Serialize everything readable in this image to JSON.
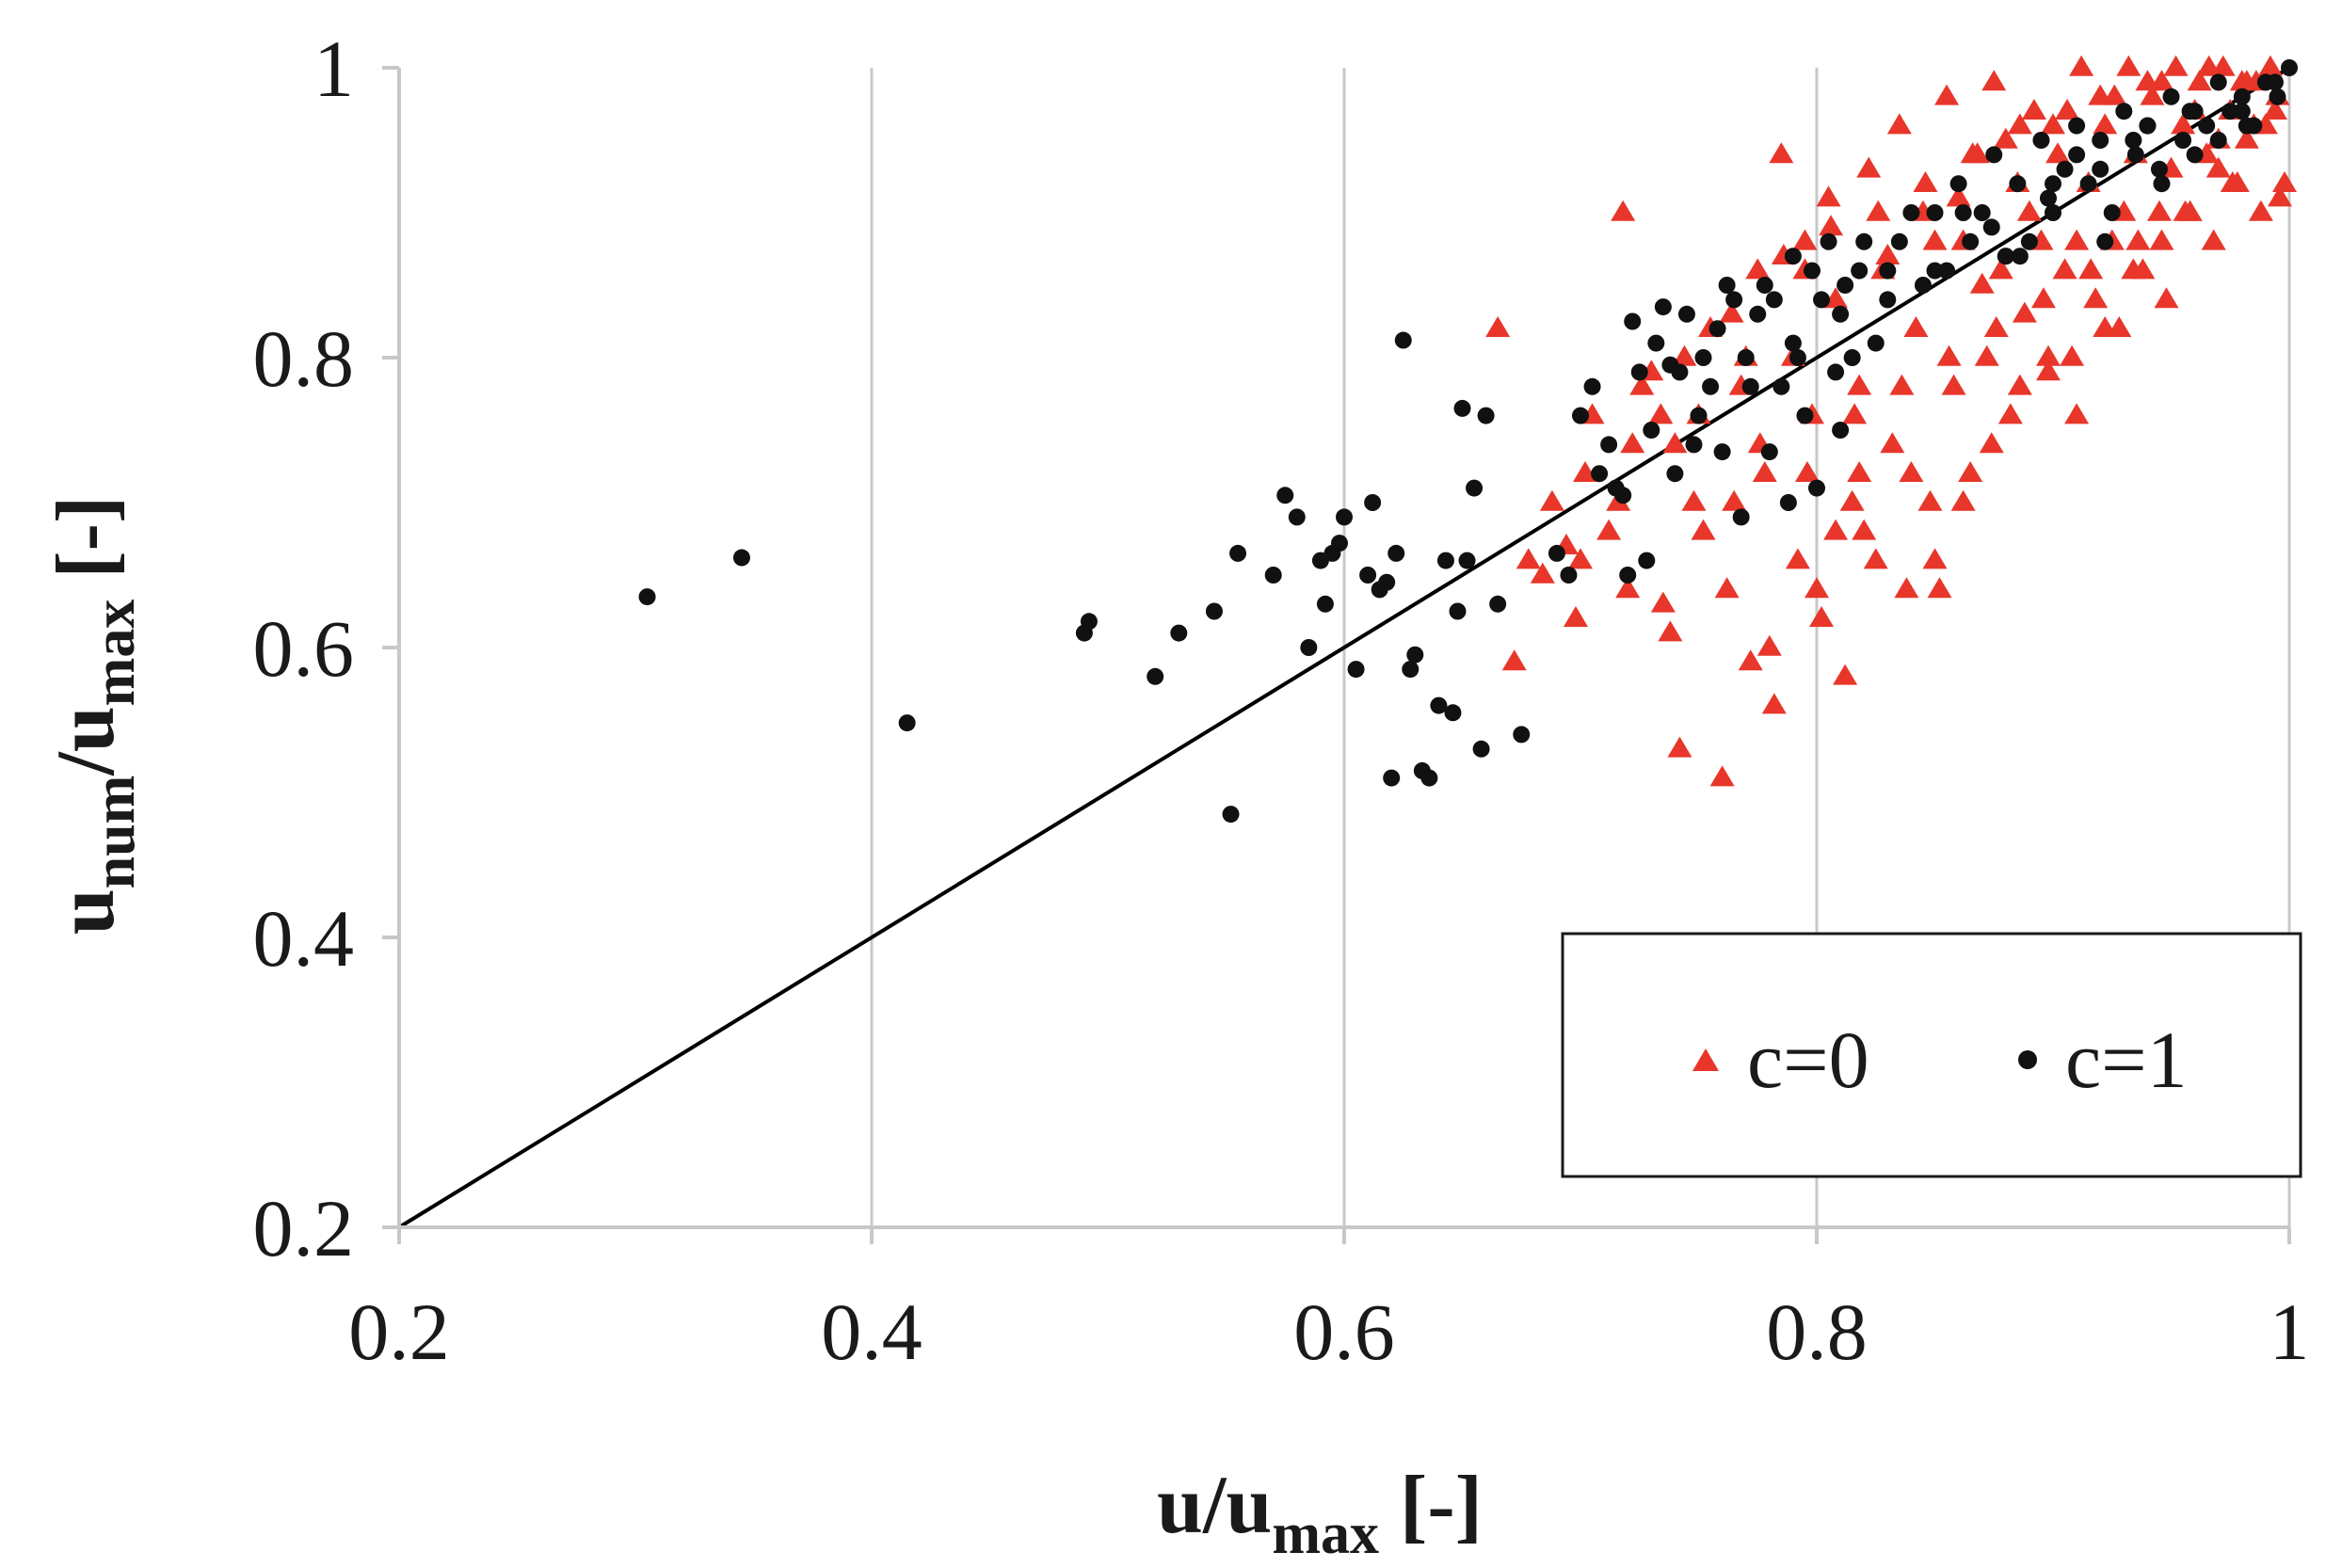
{
  "chart_data": {
    "type": "scatter",
    "xlim": [
      0.2,
      1.0
    ],
    "ylim": [
      0.2,
      1.0
    ],
    "x_ticks": [
      "0.2",
      "0.4",
      "0.6",
      "0.8",
      "1"
    ],
    "y_ticks": [
      "0.2",
      "0.4",
      "0.6",
      "0.8",
      "1"
    ],
    "xlabel": {
      "main": "u/u",
      "sub": "max",
      "suffix": " [-]"
    },
    "ylabel": {
      "main": "u",
      "sub1": "num",
      "mid": "/u",
      "sub2": "max",
      "suffix": " [-]"
    },
    "grid": "vertical",
    "legend_position": "lower-right",
    "reference_line": {
      "x": [
        0.2,
        1.0
      ],
      "y": [
        0.2,
        1.0
      ],
      "color": "#000000"
    },
    "series": [
      {
        "name": "c=0",
        "marker": "triangle",
        "color": "#e8362a",
        "x": [
          0.665,
          0.678,
          0.688,
          0.698,
          0.705,
          0.712,
          0.718,
          0.722,
          0.73,
          0.738,
          0.742,
          0.748,
          0.755,
          0.76,
          0.762,
          0.768,
          0.772,
          0.775,
          0.778,
          0.782,
          0.785,
          0.79,
          0.792,
          0.795,
          0.798,
          0.802,
          0.805,
          0.808,
          0.812,
          0.815,
          0.818,
          0.822,
          0.825,
          0.828,
          0.832,
          0.835,
          0.838,
          0.842,
          0.845,
          0.848,
          0.852,
          0.855,
          0.858,
          0.862,
          0.865,
          0.868,
          0.872,
          0.875,
          0.878,
          0.882,
          0.885,
          0.888,
          0.892,
          0.895,
          0.898,
          0.902,
          0.905,
          0.908,
          0.912,
          0.915,
          0.918,
          0.922,
          0.925,
          0.928,
          0.932,
          0.935,
          0.938,
          0.942,
          0.945,
          0.948,
          0.952,
          0.955,
          0.958,
          0.962,
          0.965,
          0.968,
          0.972,
          0.975,
          0.978,
          0.982,
          0.985,
          0.988,
          0.992,
          0.995,
          0.998,
          0.672,
          0.684,
          0.694,
          0.702,
          0.716,
          0.726,
          0.734,
          0.744,
          0.752,
          0.764,
          0.776,
          0.786,
          0.796,
          0.806,
          0.816,
          0.826,
          0.836,
          0.846,
          0.856,
          0.866,
          0.876,
          0.886,
          0.896,
          0.906,
          0.916,
          0.926,
          0.936,
          0.946,
          0.956,
          0.966,
          0.976,
          0.986,
          0.996,
          0.74,
          0.765,
          0.77,
          0.795,
          0.808,
          0.818,
          0.83,
          0.85,
          0.86,
          0.87,
          0.88,
          0.89,
          0.9,
          0.91,
          0.92,
          0.93,
          0.94,
          0.95,
          0.96,
          0.97,
          0.98,
          0.99,
          0.85,
          0.862,
          0.874,
          0.886,
          0.898,
          0.91,
          0.922,
          0.934,
          0.946,
          0.958,
          0.97,
          0.982,
          0.994,
          0.78,
          0.8,
          0.82,
          0.84,
          0.7,
          0.72,
          0.735,
          0.75
        ],
        "y": [
          0.82,
          0.66,
          0.7,
          0.62,
          0.76,
          0.68,
          0.9,
          0.74,
          0.79,
          0.61,
          0.53,
          0.7,
          0.82,
          0.51,
          0.64,
          0.78,
          0.59,
          0.86,
          0.72,
          0.56,
          0.94,
          0.8,
          0.66,
          0.88,
          0.76,
          0.62,
          0.91,
          0.84,
          0.58,
          0.7,
          0.78,
          0.93,
          0.66,
          0.86,
          0.74,
          0.96,
          0.64,
          0.82,
          0.9,
          0.7,
          0.64,
          0.98,
          0.78,
          0.88,
          0.72,
          0.94,
          0.8,
          0.99,
          0.86,
          0.76,
          0.92,
          0.83,
          0.97,
          0.88,
          0.79,
          0.94,
          0.86,
          0.8,
          1.0,
          0.92,
          0.84,
          0.96,
          0.88,
          0.82,
          1.0,
          0.94,
          0.86,
          0.98,
          0.9,
          0.84,
          1.0,
          0.96,
          0.9,
          0.99,
          0.94,
          0.88,
          1.0,
          0.97,
          0.92,
          0.99,
          0.96,
          0.9,
          1.0,
          0.98,
          0.92,
          0.59,
          0.65,
          0.67,
          0.72,
          0.7,
          0.78,
          0.76,
          0.8,
          0.68,
          0.83,
          0.74,
          0.87,
          0.72,
          0.89,
          0.76,
          0.9,
          0.78,
          0.92,
          0.8,
          0.94,
          0.82,
          0.96,
          0.84,
          0.97,
          0.86,
          0.98,
          0.88,
          0.99,
          0.9,
          1.0,
          0.92,
          0.99,
          0.91,
          0.74,
          0.7,
          0.8,
          0.86,
          0.68,
          0.72,
          0.87,
          0.88,
          0.91,
          0.85,
          0.95,
          0.9,
          0.96,
          0.88,
          0.98,
          0.9,
          0.99,
          0.93,
          0.97,
          0.95,
          0.99,
          0.96,
          0.66,
          0.7,
          0.74,
          0.78,
          0.8,
          0.76,
          0.82,
          0.86,
          0.88,
          0.9,
          0.93,
          0.95,
          0.97,
          0.6,
          0.64,
          0.68,
          0.72,
          0.66,
          0.64,
          0.63,
          0.76
        ]
      },
      {
        "name": "c=1",
        "marker": "circle",
        "color": "#111111",
        "x": [
          0.305,
          0.345,
          0.415,
          0.49,
          0.492,
          0.52,
          0.53,
          0.545,
          0.552,
          0.555,
          0.57,
          0.575,
          0.58,
          0.585,
          0.59,
          0.592,
          0.595,
          0.598,
          0.6,
          0.605,
          0.61,
          0.612,
          0.615,
          0.618,
          0.62,
          0.622,
          0.625,
          0.628,
          0.63,
          0.633,
          0.636,
          0.64,
          0.643,
          0.646,
          0.648,
          0.65,
          0.652,
          0.655,
          0.658,
          0.66,
          0.665,
          0.675,
          0.69,
          0.695,
          0.7,
          0.705,
          0.708,
          0.712,
          0.715,
          0.718,
          0.72,
          0.722,
          0.725,
          0.728,
          0.73,
          0.732,
          0.735,
          0.738,
          0.74,
          0.742,
          0.745,
          0.748,
          0.75,
          0.752,
          0.755,
          0.758,
          0.76,
          0.762,
          0.765,
          0.768,
          0.77,
          0.772,
          0.775,
          0.778,
          0.78,
          0.782,
          0.785,
          0.788,
          0.79,
          0.792,
          0.795,
          0.798,
          0.8,
          0.802,
          0.805,
          0.808,
          0.81,
          0.812,
          0.815,
          0.818,
          0.82,
          0.825,
          0.83,
          0.835,
          0.84,
          0.845,
          0.85,
          0.855,
          0.86,
          0.865,
          0.87,
          0.875,
          0.88,
          0.885,
          0.89,
          0.895,
          0.9,
          0.905,
          0.91,
          0.915,
          0.92,
          0.925,
          0.93,
          0.935,
          0.94,
          0.945,
          0.95,
          0.955,
          0.96,
          0.965,
          0.97,
          0.975,
          0.98,
          0.985,
          0.99,
          0.995,
          1.0,
          0.862,
          0.874,
          0.886,
          0.898,
          0.91,
          0.922,
          0.934,
          0.946,
          0.958,
          0.97,
          0.982,
          0.994,
          0.88,
          0.9,
          0.92,
          0.94,
          0.96,
          0.98,
          0.79,
          0.81,
          0.83,
          0.85
        ],
        "y": [
          0.635,
          0.662,
          0.548,
          0.61,
          0.618,
          0.58,
          0.61,
          0.625,
          0.485,
          0.665,
          0.65,
          0.705,
          0.69,
          0.6,
          0.66,
          0.63,
          0.665,
          0.672,
          0.69,
          0.585,
          0.65,
          0.7,
          0.64,
          0.645,
          0.51,
          0.665,
          0.812,
          0.585,
          0.595,
          0.515,
          0.51,
          0.56,
          0.66,
          0.555,
          0.625,
          0.765,
          0.66,
          0.71,
          0.53,
          0.76,
          0.63,
          0.54,
          0.665,
          0.65,
          0.76,
          0.78,
          0.72,
          0.74,
          0.71,
          0.705,
          0.65,
          0.825,
          0.79,
          0.66,
          0.75,
          0.81,
          0.835,
          0.795,
          0.72,
          0.79,
          0.83,
          0.74,
          0.76,
          0.8,
          0.78,
          0.82,
          0.735,
          0.85,
          0.84,
          0.69,
          0.8,
          0.78,
          0.83,
          0.85,
          0.735,
          0.84,
          0.78,
          0.7,
          0.87,
          0.8,
          0.76,
          0.86,
          0.71,
          0.84,
          0.88,
          0.79,
          0.75,
          0.85,
          0.8,
          0.86,
          0.88,
          0.81,
          0.86,
          0.88,
          0.9,
          0.85,
          0.9,
          0.86,
          0.92,
          0.88,
          0.9,
          0.94,
          0.87,
          0.92,
          0.88,
          0.95,
          0.9,
          0.93,
          0.96,
          0.92,
          0.95,
          0.9,
          0.97,
          0.94,
          0.96,
          0.93,
          0.98,
          0.95,
          0.97,
          0.96,
          0.99,
          0.97,
          0.98,
          0.96,
          0.99,
          0.98,
          1.0,
          0.9,
          0.89,
          0.87,
          0.91,
          0.94,
          0.88,
          0.95,
          0.92,
          0.97,
          0.95,
          0.96,
          0.99,
          0.87,
          0.92,
          0.93,
          0.96,
          0.94,
          0.97,
          0.81,
          0.83,
          0.84,
          0.86
        ]
      }
    ]
  },
  "legend": {
    "items": [
      "c=0",
      "c=1"
    ]
  }
}
